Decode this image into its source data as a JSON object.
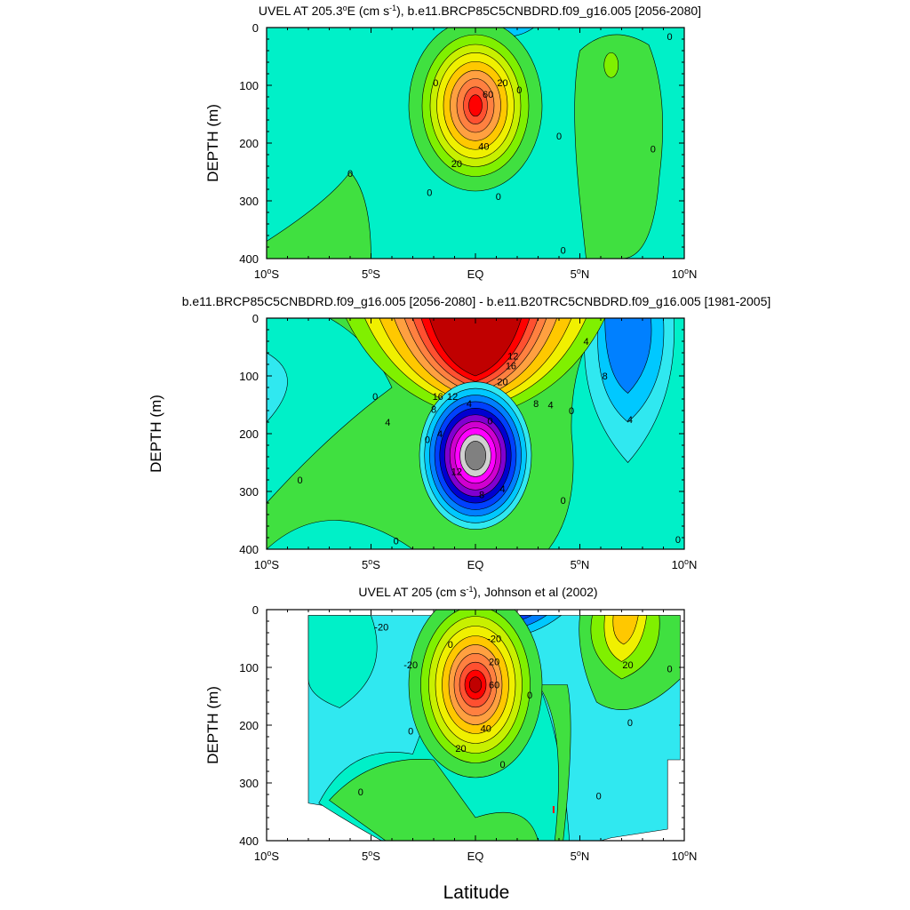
{
  "figure": {
    "xlabel": "Latitude"
  },
  "chart_data": [
    {
      "type": "heatmap",
      "title_prefix": "UVEL AT 205.3",
      "title_degree": "o",
      "title_mid": "E (cm s",
      "title_sup": "-1",
      "title_suffix": "), b.e11.BRCP85C5CNBDRD.f09_g16.005 [2056-2080]",
      "ylabel": "DEPTH (m)",
      "x_range": [
        -10,
        10
      ],
      "y_range": [
        0,
        400
      ],
      "y_inverted": true,
      "x_tick_labels": [
        {
          "deg": "10",
          "hemi": "S"
        },
        {
          "deg": "5",
          "hemi": "S"
        },
        {
          "deg": "",
          "hemi": "EQ"
        },
        {
          "deg": "5",
          "hemi": "N"
        },
        {
          "deg": "10",
          "hemi": "N"
        }
      ],
      "y_tick_labels": [
        "0",
        "100",
        "200",
        "300",
        "400"
      ],
      "features": [
        {
          "kind": "jet_core",
          "lat": 0.0,
          "depth": 135,
          "value": 80,
          "levels": [
            0,
            10,
            20,
            30,
            40,
            50,
            60,
            70,
            80
          ]
        },
        {
          "kind": "eastward",
          "lat": 6.5,
          "depth": 60,
          "value": 10
        },
        {
          "kind": "westward",
          "lat": 1.5,
          "depth": 0,
          "value": -10
        }
      ],
      "contour_labels": [
        {
          "lat": 1.3,
          "depth": 95,
          "text": "20"
        },
        {
          "lat": 0.6,
          "depth": 115,
          "text": "60"
        },
        {
          "lat": 0.4,
          "depth": 205,
          "text": "40"
        },
        {
          "lat": -0.9,
          "depth": 235,
          "text": "20"
        },
        {
          "lat": -1.9,
          "depth": 95,
          "text": "0"
        },
        {
          "lat": 2.1,
          "depth": 108,
          "text": "0"
        },
        {
          "lat": -6.0,
          "depth": 252,
          "text": "0"
        },
        {
          "lat": -2.2,
          "depth": 285,
          "text": "0"
        },
        {
          "lat": 1.1,
          "depth": 292,
          "text": "0"
        },
        {
          "lat": 4.0,
          "depth": 188,
          "text": "0"
        },
        {
          "lat": 8.5,
          "depth": 210,
          "text": "0"
        },
        {
          "lat": 9.3,
          "depth": 15,
          "text": "0"
        },
        {
          "lat": 4.2,
          "depth": 385,
          "text": "0"
        }
      ]
    },
    {
      "type": "heatmap",
      "title": "b.e11.BRCP85C5CNBDRD.f09_g16.005 [2056-2080] - b.e11.B20TRC5CNBDRD.f09_g16.005 [1981-2005]",
      "ylabel": "DEPTH (m)",
      "x_range": [
        -10,
        10
      ],
      "y_range": [
        0,
        400
      ],
      "y_inverted": true,
      "x_tick_labels": [
        {
          "deg": "10",
          "hemi": "S"
        },
        {
          "deg": "5",
          "hemi": "S"
        },
        {
          "deg": "",
          "hemi": "EQ"
        },
        {
          "deg": "5",
          "hemi": "N"
        },
        {
          "deg": "10",
          "hemi": "N"
        }
      ],
      "y_tick_labels": [
        "0",
        "100",
        "200",
        "300",
        "400"
      ],
      "features": [
        {
          "kind": "positive_core",
          "lat": 0.0,
          "depth": 80,
          "value": 20
        },
        {
          "kind": "negative_core",
          "lat": 0.0,
          "depth": 235,
          "value": -28
        },
        {
          "kind": "negative",
          "lat": 6.7,
          "depth": 60,
          "value": -10
        }
      ],
      "contour_labels": [
        {
          "lat": 1.8,
          "depth": 65,
          "text": "12"
        },
        {
          "lat": 1.7,
          "depth": 82,
          "text": "16"
        },
        {
          "lat": 1.3,
          "depth": 110,
          "text": "20"
        },
        {
          "lat": -1.8,
          "depth": 135,
          "text": "16"
        },
        {
          "lat": -1.1,
          "depth": 135,
          "text": "12"
        },
        {
          "lat": -2.0,
          "depth": 158,
          "text": "8"
        },
        {
          "lat": -0.3,
          "depth": 148,
          "text": "4"
        },
        {
          "lat": 2.9,
          "depth": 148,
          "text": "8"
        },
        {
          "lat": 3.6,
          "depth": 150,
          "text": "4"
        },
        {
          "lat": 0.7,
          "depth": 178,
          "text": "0"
        },
        {
          "lat": 4.6,
          "depth": 160,
          "text": "0"
        },
        {
          "lat": -4.8,
          "depth": 135,
          "text": "0"
        },
        {
          "lat": -4.2,
          "depth": 180,
          "text": "4"
        },
        {
          "lat": -2.3,
          "depth": 210,
          "text": "0"
        },
        {
          "lat": -1.7,
          "depth": 200,
          "text": "4"
        },
        {
          "lat": -0.9,
          "depth": 265,
          "text": "12"
        },
        {
          "lat": 0.3,
          "depth": 305,
          "text": "8"
        },
        {
          "lat": 1.3,
          "depth": 295,
          "text": "4"
        },
        {
          "lat": -8.4,
          "depth": 280,
          "text": "0"
        },
        {
          "lat": 4.2,
          "depth": 315,
          "text": "0"
        },
        {
          "lat": -3.8,
          "depth": 385,
          "text": "0"
        },
        {
          "lat": 9.7,
          "depth": 383,
          "text": "0"
        },
        {
          "lat": 5.3,
          "depth": 40,
          "text": "4"
        },
        {
          "lat": 6.2,
          "depth": 100,
          "text": "8"
        },
        {
          "lat": 7.4,
          "depth": 175,
          "text": "4"
        }
      ]
    },
    {
      "type": "heatmap",
      "title_prefix": "UVEL AT 205 (cm s",
      "title_sup": "-1",
      "title_suffix": "), Johnson et al (2002)",
      "ylabel": "DEPTH (m)",
      "x_range": [
        -10,
        10
      ],
      "y_range": [
        0,
        400
      ],
      "y_inverted": true,
      "x_tick_labels": [
        {
          "deg": "10",
          "hemi": "S"
        },
        {
          "deg": "5",
          "hemi": "S"
        },
        {
          "deg": "",
          "hemi": "EQ"
        },
        {
          "deg": "5",
          "hemi": "N"
        },
        {
          "deg": "10",
          "hemi": "N"
        }
      ],
      "y_tick_labels": [
        "0",
        "100",
        "200",
        "300",
        "400"
      ],
      "features": [
        {
          "kind": "jet_core",
          "lat": 0.0,
          "depth": 130,
          "value": 70
        },
        {
          "kind": "eastward",
          "lat": 6.8,
          "depth": 55,
          "value": 30
        },
        {
          "kind": "westward",
          "lat": 1.5,
          "depth": 15,
          "value": -40
        }
      ],
      "contour_labels": [
        {
          "lat": -4.5,
          "depth": 30,
          "text": "-20"
        },
        {
          "lat": -3.1,
          "depth": 95,
          "text": "-20"
        },
        {
          "lat": 0.9,
          "depth": 50,
          "text": "-20"
        },
        {
          "lat": -1.2,
          "depth": 60,
          "text": "0"
        },
        {
          "lat": 0.9,
          "depth": 90,
          "text": "20"
        },
        {
          "lat": 0.9,
          "depth": 130,
          "text": "60"
        },
        {
          "lat": 0.5,
          "depth": 205,
          "text": "40"
        },
        {
          "lat": -0.7,
          "depth": 240,
          "text": "20"
        },
        {
          "lat": 2.6,
          "depth": 148,
          "text": "0"
        },
        {
          "lat": -3.1,
          "depth": 210,
          "text": "0"
        },
        {
          "lat": 1.3,
          "depth": 268,
          "text": "0"
        },
        {
          "lat": -5.5,
          "depth": 315,
          "text": "0"
        },
        {
          "lat": 7.3,
          "depth": 95,
          "text": "20"
        },
        {
          "lat": 9.3,
          "depth": 102,
          "text": "0"
        },
        {
          "lat": 7.4,
          "depth": 195,
          "text": "0"
        },
        {
          "lat": 5.9,
          "depth": 322,
          "text": "0"
        }
      ]
    }
  ]
}
